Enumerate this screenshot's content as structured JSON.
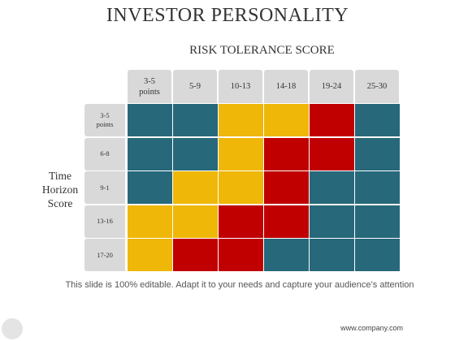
{
  "title": "INVESTOR PERSONALITY",
  "subtitle": "RISK TOLERANCE SCORE",
  "side_label": [
    "Time",
    "Horizon",
    "Score"
  ],
  "columns": [
    "3-5 points",
    "5-9",
    "10-13",
    "14-18",
    "19-24",
    "25-30"
  ],
  "rows": [
    "3-5 points",
    "6-8",
    "9-1",
    "13-16",
    "17-20"
  ],
  "colors": {
    "teal": "#27687a",
    "yellow": "#efb707",
    "red": "#c00000"
  },
  "matrix": [
    [
      "teal",
      "teal",
      "yellow",
      "yellow",
      "red",
      "teal"
    ],
    [
      "teal",
      "teal",
      "yellow",
      "red",
      "red",
      "teal"
    ],
    [
      "teal",
      "yellow",
      "yellow",
      "red",
      "teal",
      "teal"
    ],
    [
      "yellow",
      "yellow",
      "red",
      "red",
      "teal",
      "teal"
    ],
    [
      "yellow",
      "red",
      "red",
      "teal",
      "teal",
      "teal"
    ]
  ],
  "footer": "This slide is 100% editable. Adapt it to your needs and capture your audience’s attention",
  "url": "www.company.com"
}
